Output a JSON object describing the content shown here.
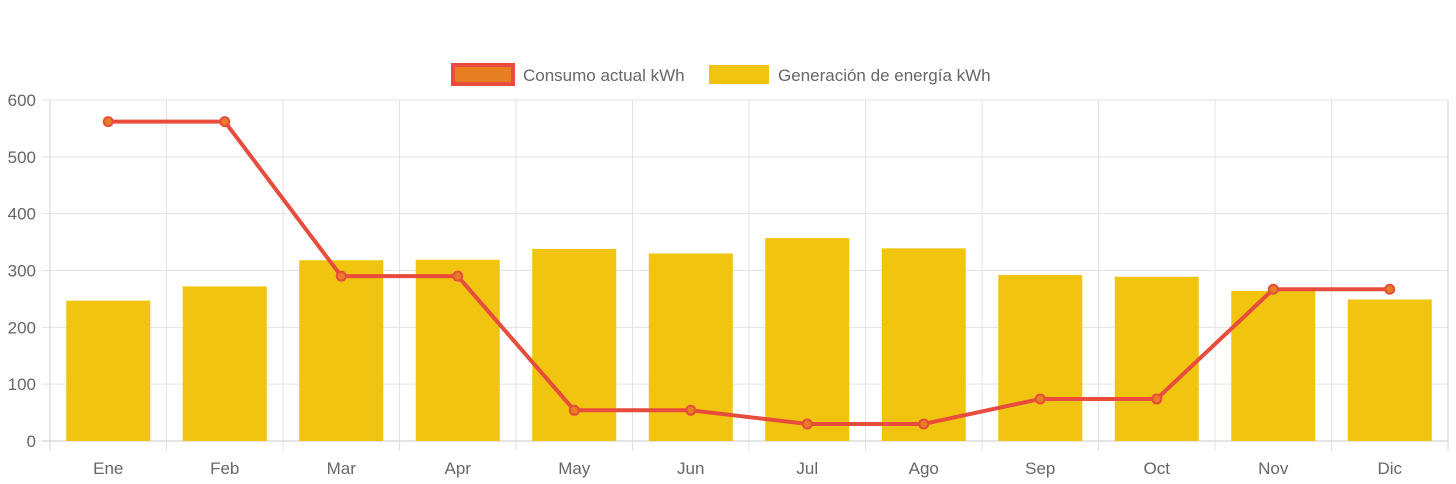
{
  "chart_data": {
    "type": "bar",
    "categories": [
      "Ene",
      "Feb",
      "Mar",
      "Apr",
      "May",
      "Jun",
      "Jul",
      "Ago",
      "Sep",
      "Oct",
      "Nov",
      "Dic"
    ],
    "series": [
      {
        "name": "Consumo actual kWh",
        "type": "line",
        "values": [
          562,
          562,
          290,
          290,
          54,
          54,
          30,
          30,
          74,
          74,
          267,
          267
        ],
        "color": "#e74c3c",
        "point_color": "#e67e22"
      },
      {
        "name": "Generación de energía kWh",
        "type": "bar",
        "values": [
          247,
          272,
          318,
          319,
          338,
          330,
          357,
          339,
          292,
          289,
          264,
          249
        ],
        "color": "#f1c40f"
      }
    ],
    "ylim": [
      0,
      600
    ],
    "yticks": [
      0,
      100,
      200,
      300,
      400,
      500,
      600
    ],
    "grid": true,
    "legend_position": "top-center"
  }
}
